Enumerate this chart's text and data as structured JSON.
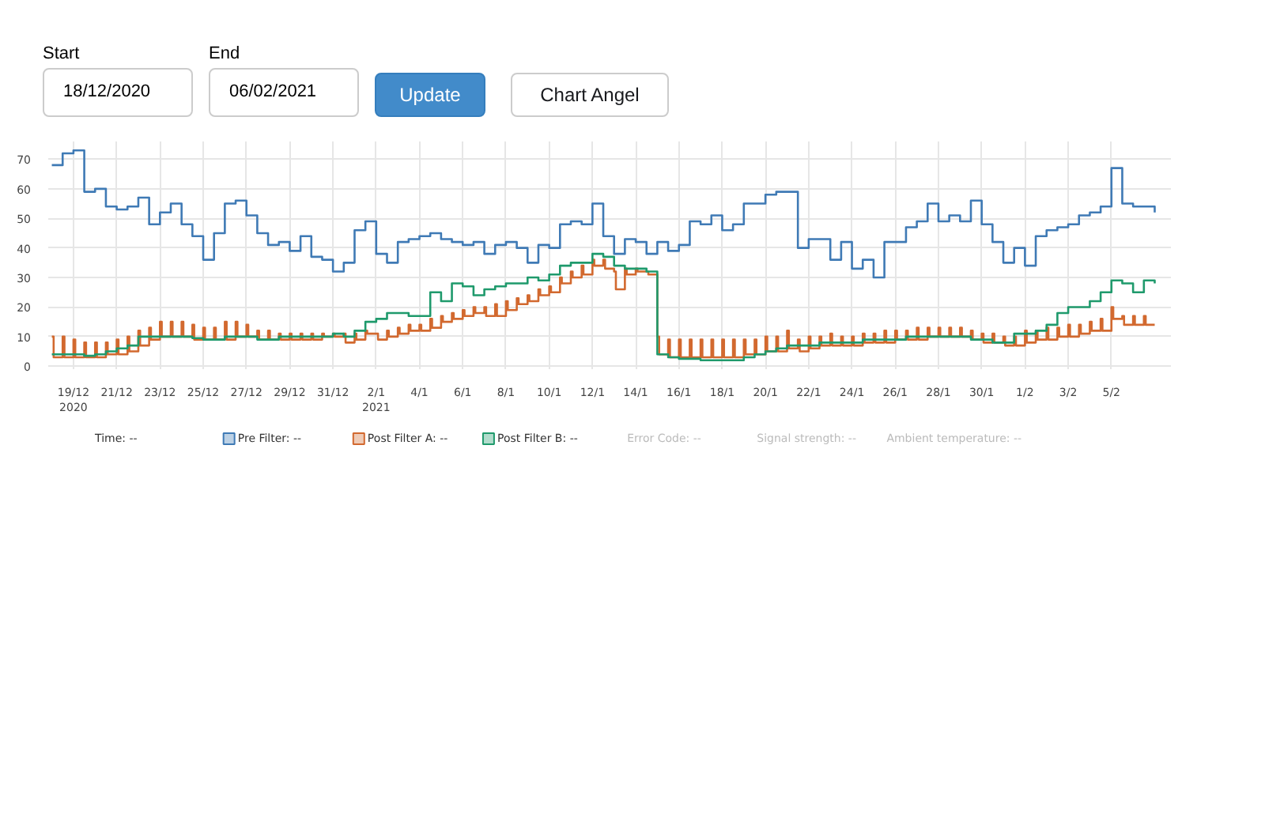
{
  "chart_data": {
    "type": "step",
    "annotations": [
      "Start",
      "18/12/2020",
      "End",
      "06/02/2021",
      "Update",
      "Chart Angel",
      "Time: --",
      "Error Code: --",
      "Signal strength: --",
      "Ambient temperature: --"
    ],
    "xlim": [
      "2020-12-17T20:00",
      "2021-02-07T18:00"
    ],
    "xticks": [
      {
        "value": "2020-12-19",
        "label": "19/12\n2020"
      },
      {
        "value": "2020-12-21",
        "label": "21/12"
      },
      {
        "value": "2020-12-23",
        "label": "23/12"
      },
      {
        "value": "2020-12-25",
        "label": "25/12"
      },
      {
        "value": "2020-12-27",
        "label": "27/12"
      },
      {
        "value": "2020-12-29",
        "label": "29/12"
      },
      {
        "value": "2020-12-31",
        "label": "31/12"
      },
      {
        "value": "2021-01-02",
        "label": "2/1\n2021"
      },
      {
        "value": "2021-01-04",
        "label": "4/1"
      },
      {
        "value": "2021-01-06",
        "label": "6/1"
      },
      {
        "value": "2021-01-08",
        "label": "8/1"
      },
      {
        "value": "2021-01-10",
        "label": "10/1"
      },
      {
        "value": "2021-01-12",
        "label": "12/1"
      },
      {
        "value": "2021-01-14",
        "label": "14/1"
      },
      {
        "value": "2021-01-16",
        "label": "16/1"
      },
      {
        "value": "2021-01-18",
        "label": "18/1"
      },
      {
        "value": "2021-01-20",
        "label": "20/1"
      },
      {
        "value": "2021-01-22",
        "label": "22/1"
      },
      {
        "value": "2021-01-24",
        "label": "24/1"
      },
      {
        "value": "2021-01-26",
        "label": "26/1"
      },
      {
        "value": "2021-01-28",
        "label": "28/1"
      },
      {
        "value": "2021-01-30",
        "label": "30/1"
      },
      {
        "value": "2021-02-01",
        "label": "1/2"
      },
      {
        "value": "2021-02-03",
        "label": "3/2"
      },
      {
        "value": "2021-02-05",
        "label": "5/2"
      }
    ],
    "ylim": [
      -1,
      76
    ],
    "yticks": [
      0,
      10,
      20,
      30,
      40,
      50,
      60,
      70
    ],
    "grid": true,
    "legend": "bottom",
    "x": [
      "2020-12-18T00:00",
      "2020-12-18T12:00",
      "2020-12-19T00:00",
      "2020-12-19T12:00",
      "2020-12-20T00:00",
      "2020-12-20T12:00",
      "2020-12-21T00:00",
      "2020-12-21T12:00",
      "2020-12-22T00:00",
      "2020-12-22T12:00",
      "2020-12-23T00:00",
      "2020-12-23T12:00",
      "2020-12-24T00:00",
      "2020-12-24T12:00",
      "2020-12-25T00:00",
      "2020-12-25T12:00",
      "2020-12-26T00:00",
      "2020-12-26T12:00",
      "2020-12-27T00:00",
      "2020-12-27T12:00",
      "2020-12-28T00:00",
      "2020-12-28T12:00",
      "2020-12-29T00:00",
      "2020-12-29T12:00",
      "2020-12-30T00:00",
      "2020-12-30T12:00",
      "2020-12-31T00:00",
      "2020-12-31T12:00",
      "2021-01-01T00:00",
      "2021-01-01T12:00",
      "2021-01-02T00:00",
      "2021-01-02T12:00",
      "2021-01-03T00:00",
      "2021-01-03T12:00",
      "2021-01-04T00:00",
      "2021-01-04T12:00",
      "2021-01-05T00:00",
      "2021-01-05T12:00",
      "2021-01-06T00:00",
      "2021-01-06T12:00",
      "2021-01-07T00:00",
      "2021-01-07T12:00",
      "2021-01-08T00:00",
      "2021-01-08T12:00",
      "2021-01-09T00:00",
      "2021-01-09T12:00",
      "2021-01-10T00:00",
      "2021-01-10T12:00",
      "2021-01-11T00:00",
      "2021-01-11T12:00",
      "2021-01-12T00:00",
      "2021-01-12T12:00",
      "2021-01-13T00:00",
      "2021-01-13T12:00",
      "2021-01-14T00:00",
      "2021-01-14T12:00",
      "2021-01-15T00:00",
      "2021-01-15T12:00",
      "2021-01-16T00:00",
      "2021-01-16T12:00",
      "2021-01-17T00:00",
      "2021-01-17T12:00",
      "2021-01-18T00:00",
      "2021-01-18T12:00",
      "2021-01-19T00:00",
      "2021-01-19T12:00",
      "2021-01-20T00:00",
      "2021-01-20T12:00",
      "2021-01-21T00:00",
      "2021-01-21T12:00",
      "2021-01-22T00:00",
      "2021-01-22T12:00",
      "2021-01-23T00:00",
      "2021-01-23T12:00",
      "2021-01-24T00:00",
      "2021-01-24T12:00",
      "2021-01-25T00:00",
      "2021-01-25T12:00",
      "2021-01-26T00:00",
      "2021-01-26T12:00",
      "2021-01-27T00:00",
      "2021-01-27T12:00",
      "2021-01-28T00:00",
      "2021-01-28T12:00",
      "2021-01-29T00:00",
      "2021-01-29T12:00",
      "2021-01-30T00:00",
      "2021-01-30T12:00",
      "2021-01-31T00:00",
      "2021-01-31T12:00",
      "2021-02-01T00:00",
      "2021-02-01T12:00",
      "2021-02-02T00:00",
      "2021-02-02T12:00",
      "2021-02-03T00:00",
      "2021-02-03T12:00",
      "2021-02-04T00:00",
      "2021-02-04T12:00",
      "2021-02-05T00:00",
      "2021-02-05T12:00",
      "2021-02-06T00:00",
      "2021-02-06T12:00",
      "2021-02-07T00:00"
    ],
    "series": [
      {
        "name": "Pre Filter: --",
        "color": "#3f7ab5",
        "values": [
          68,
          72,
          73,
          59,
          60,
          54,
          53,
          54,
          57,
          48,
          52,
          55,
          48,
          44,
          36,
          45,
          55,
          56,
          51,
          45,
          41,
          42,
          39,
          44,
          37,
          36,
          32,
          35,
          46,
          49,
          38,
          35,
          42,
          43,
          44,
          45,
          43,
          42,
          41,
          42,
          38,
          41,
          42,
          40,
          35,
          41,
          40,
          48,
          49,
          48,
          55,
          44,
          38,
          43,
          42,
          38,
          42,
          39,
          41,
          49,
          48,
          51,
          46,
          48,
          55,
          55,
          58,
          59,
          59,
          40,
          43,
          43,
          36,
          42,
          33,
          36,
          30,
          42,
          42,
          47,
          49,
          55,
          49,
          51,
          49,
          56,
          48,
          42,
          35,
          40,
          34,
          44,
          46,
          47,
          48,
          51,
          52,
          54,
          67,
          55,
          54,
          54,
          52
        ]
      },
      {
        "name": "Post Filter A: --",
        "color": "#d2692f",
        "x": [
          "2020-12-18T00:00",
          "2020-12-18T02:00",
          "2020-12-18T12:00",
          "2020-12-18T14:00",
          "2020-12-19T00:00",
          "2020-12-19T02:00",
          "2020-12-19T12:00",
          "2020-12-19T14:00",
          "2020-12-20T00:00",
          "2020-12-20T02:00",
          "2020-12-20T12:00",
          "2020-12-20T14:00",
          "2020-12-21T00:00",
          "2020-12-21T02:00",
          "2020-12-21T12:00",
          "2020-12-21T14:00",
          "2020-12-22T00:00",
          "2020-12-22T02:00",
          "2020-12-22T12:00",
          "2020-12-22T14:00",
          "2020-12-23T00:00",
          "2020-12-23T02:00",
          "2020-12-23T12:00",
          "2020-12-23T14:00",
          "2020-12-24T00:00",
          "2020-12-24T02:00",
          "2020-12-24T12:00",
          "2020-12-24T14:00",
          "2020-12-25T00:00",
          "2020-12-25T02:00",
          "2020-12-25T12:00",
          "2020-12-25T14:00",
          "2020-12-26T00:00",
          "2020-12-26T02:00",
          "2020-12-26T12:00",
          "2020-12-26T14:00",
          "2020-12-27T00:00",
          "2020-12-27T02:00",
          "2020-12-27T12:00",
          "2020-12-27T14:00",
          "2020-12-28T00:00",
          "2020-12-28T02:00",
          "2020-12-28T12:00",
          "2020-12-28T14:00",
          "2020-12-29T00:00",
          "2020-12-29T02:00",
          "2020-12-29T12:00",
          "2020-12-29T14:00",
          "2020-12-30T00:00",
          "2020-12-30T02:00",
          "2020-12-30T12:00",
          "2020-12-30T14:00",
          "2020-12-31T00:00",
          "2020-12-31T02:00",
          "2020-12-31T12:00",
          "2020-12-31T14:00",
          "2021-01-01T00:00",
          "2021-01-01T02:00",
          "2021-01-01T12:00",
          "2021-01-01T14:00",
          "2021-01-02T00:00",
          "2021-01-02T02:00",
          "2021-01-02T12:00",
          "2021-01-02T14:00",
          "2021-01-03T00:00",
          "2021-01-03T02:00",
          "2021-01-03T12:00",
          "2021-01-03T14:00",
          "2021-01-04T00:00",
          "2021-01-04T02:00",
          "2021-01-04T12:00",
          "2021-01-04T14:00",
          "2021-01-05T00:00",
          "2021-01-05T02:00",
          "2021-01-05T12:00",
          "2021-01-05T14:00",
          "2021-01-06T00:00",
          "2021-01-06T02:00",
          "2021-01-06T12:00",
          "2021-01-06T14:00",
          "2021-01-07T00:00",
          "2021-01-07T02:00",
          "2021-01-07T12:00",
          "2021-01-07T14:00",
          "2021-01-08T00:00",
          "2021-01-08T02:00",
          "2021-01-08T12:00",
          "2021-01-08T14:00",
          "2021-01-09T00:00",
          "2021-01-09T02:00",
          "2021-01-09T12:00",
          "2021-01-09T14:00",
          "2021-01-10T00:00",
          "2021-01-10T02:00",
          "2021-01-10T12:00",
          "2021-01-10T14:00",
          "2021-01-11T00:00",
          "2021-01-11T02:00",
          "2021-01-11T12:00",
          "2021-01-11T14:00",
          "2021-01-12T00:00",
          "2021-01-12T02:00",
          "2021-01-12T12:00",
          "2021-01-12T14:00",
          "2021-01-13T00:00",
          "2021-01-13T02:00",
          "2021-01-13T12:00",
          "2021-01-13T14:00",
          "2021-01-14T00:00",
          "2021-01-14T02:00",
          "2021-01-14T12:00",
          "2021-01-14T14:00",
          "2021-01-15T00:00",
          "2021-01-15T02:00",
          "2021-01-15T12:00",
          "2021-01-15T14:00",
          "2021-01-16T00:00",
          "2021-01-16T02:00",
          "2021-01-16T12:00",
          "2021-01-16T14:00",
          "2021-01-17T00:00",
          "2021-01-17T02:00",
          "2021-01-17T12:00",
          "2021-01-17T14:00",
          "2021-01-18T00:00",
          "2021-01-18T02:00",
          "2021-01-18T12:00",
          "2021-01-18T14:00",
          "2021-01-19T00:00",
          "2021-01-19T02:00",
          "2021-01-19T12:00",
          "2021-01-19T14:00",
          "2021-01-20T00:00",
          "2021-01-20T02:00",
          "2021-01-20T12:00",
          "2021-01-20T14:00",
          "2021-01-21T00:00",
          "2021-01-21T02:00",
          "2021-01-21T12:00",
          "2021-01-21T14:00",
          "2021-01-22T00:00",
          "2021-01-22T02:00",
          "2021-01-22T12:00",
          "2021-01-22T14:00",
          "2021-01-23T00:00",
          "2021-01-23T02:00",
          "2021-01-23T12:00",
          "2021-01-23T14:00",
          "2021-01-24T00:00",
          "2021-01-24T02:00",
          "2021-01-24T12:00",
          "2021-01-24T14:00",
          "2021-01-25T00:00",
          "2021-01-25T02:00",
          "2021-01-25T12:00",
          "2021-01-25T14:00",
          "2021-01-26T00:00",
          "2021-01-26T02:00",
          "2021-01-26T12:00",
          "2021-01-26T14:00",
          "2021-01-27T00:00",
          "2021-01-27T02:00",
          "2021-01-27T12:00",
          "2021-01-27T14:00",
          "2021-01-28T00:00",
          "2021-01-28T02:00",
          "2021-01-28T12:00",
          "2021-01-28T14:00",
          "2021-01-29T00:00",
          "2021-01-29T02:00",
          "2021-01-29T12:00",
          "2021-01-29T14:00",
          "2021-01-30T00:00",
          "2021-01-30T02:00",
          "2021-01-30T12:00",
          "2021-01-30T14:00",
          "2021-01-31T00:00",
          "2021-01-31T02:00",
          "2021-01-31T12:00",
          "2021-01-31T14:00",
          "2021-02-01T00:00",
          "2021-02-01T02:00",
          "2021-02-01T12:00",
          "2021-02-01T14:00",
          "2021-02-02T00:00",
          "2021-02-02T02:00",
          "2021-02-02T12:00",
          "2021-02-02T14:00",
          "2021-02-03T00:00",
          "2021-02-03T02:00",
          "2021-02-03T12:00",
          "2021-02-03T14:00",
          "2021-02-04T00:00",
          "2021-02-04T02:00",
          "2021-02-04T12:00",
          "2021-02-04T14:00",
          "2021-02-05T00:00",
          "2021-02-05T02:00",
          "2021-02-05T12:00",
          "2021-02-05T14:00",
          "2021-02-06T00:00",
          "2021-02-06T02:00",
          "2021-02-06T12:00",
          "2021-02-06T14:00",
          "2021-02-07T00:00"
        ],
        "values": [
          10,
          3,
          10,
          3,
          9,
          3,
          8,
          3,
          8,
          3,
          8,
          4,
          9,
          4,
          10,
          5,
          12,
          7,
          13,
          9,
          15,
          10,
          15,
          10,
          15,
          10,
          14,
          9,
          13,
          9,
          13,
          9,
          15,
          9,
          15,
          10,
          14,
          10,
          12,
          9,
          12,
          9,
          11,
          9,
          11,
          9,
          11,
          9,
          11,
          9,
          11,
          10,
          11,
          10,
          11,
          8,
          11,
          9,
          12,
          11,
          11,
          9,
          12,
          10,
          13,
          11,
          14,
          12,
          14,
          12,
          16,
          13,
          17,
          15,
          18,
          16,
          19,
          17,
          20,
          18,
          20,
          17,
          21,
          17,
          22,
          19,
          23,
          21,
          24,
          22,
          26,
          24,
          27,
          25,
          30,
          28,
          32,
          30,
          34,
          31,
          36,
          34,
          36,
          33,
          32,
          26,
          33,
          31,
          33,
          32,
          32,
          31,
          10,
          4,
          9,
          3,
          9,
          3,
          9,
          3,
          9,
          3,
          9,
          3,
          9,
          3,
          9,
          3,
          9,
          4,
          9,
          4,
          10,
          5,
          10,
          5,
          12,
          6,
          9,
          5,
          10,
          6,
          10,
          7,
          11,
          7,
          10,
          7,
          10,
          7,
          11,
          8,
          11,
          8,
          12,
          8,
          12,
          9,
          12,
          9,
          13,
          9,
          13,
          10,
          13,
          10,
          13,
          10,
          13,
          10,
          12,
          9,
          11,
          8,
          11,
          8,
          10,
          7,
          10,
          7,
          12,
          8,
          12,
          9,
          13,
          9,
          13,
          10,
          14,
          10,
          14,
          11,
          15,
          12,
          16,
          12,
          20,
          16,
          17,
          14,
          17,
          14,
          17,
          14,
          14
        ]
      },
      {
        "name": "Post Filter B: --",
        "color": "#1f9a6c",
        "values": [
          4,
          4,
          4,
          3.5,
          4,
          5,
          6,
          7,
          10,
          10,
          10,
          10,
          10,
          9.5,
          9,
          9,
          10,
          10,
          10,
          9,
          9,
          10,
          10,
          10,
          10,
          10,
          11,
          10,
          12,
          15,
          16,
          18,
          18,
          17,
          17,
          25,
          22,
          28,
          27,
          24,
          26,
          27,
          28,
          28,
          30,
          29,
          31,
          34,
          35,
          35,
          38,
          37,
          34,
          33,
          33,
          32,
          4,
          3,
          2.5,
          2.5,
          2,
          2,
          2,
          2,
          3,
          4,
          5,
          6,
          7,
          7,
          7,
          8,
          8,
          8,
          8,
          9,
          9,
          9,
          9,
          10,
          10,
          10,
          10,
          10,
          10,
          9,
          9,
          8,
          8,
          11,
          11,
          12,
          14,
          18,
          20,
          20,
          22,
          25,
          29,
          28,
          25,
          29,
          28
        ]
      }
    ]
  }
}
